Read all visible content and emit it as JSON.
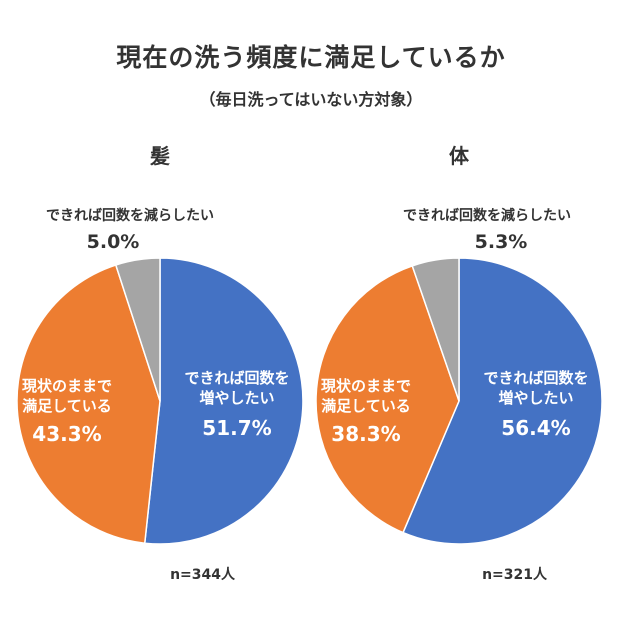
{
  "title": "現在の洗う頻度に満足しているか",
  "subtitle": "（毎日洗ってはいない方対象）",
  "colors": {
    "blue": "#4472C4",
    "orange": "#ED7D31",
    "gray": "#A5A5A5",
    "white": "#FFFFFF"
  },
  "chart_data": [
    {
      "type": "pie",
      "title": "髪",
      "n_label": "n=344人",
      "slices": [
        {
          "label_lines": [
            "できれば回数を",
            "増やしたい"
          ],
          "value": 51.7,
          "value_label": "51.7%",
          "color": "#4472C4"
        },
        {
          "label_lines": [
            "現状のままで",
            "満足している"
          ],
          "value": 43.3,
          "value_label": "43.3%",
          "color": "#ED7D31"
        },
        {
          "label_lines": [
            "できれば回数を減らしたい"
          ],
          "value": 5.0,
          "value_label": "5.0%",
          "color": "#A5A5A5"
        }
      ]
    },
    {
      "type": "pie",
      "title": "体",
      "n_label": "n=321人",
      "slices": [
        {
          "label_lines": [
            "できれば回数を",
            "増やしたい"
          ],
          "value": 56.4,
          "value_label": "56.4%",
          "color": "#4472C4"
        },
        {
          "label_lines": [
            "現状のままで",
            "満足している"
          ],
          "value": 38.3,
          "value_label": "38.3%",
          "color": "#ED7D31"
        },
        {
          "label_lines": [
            "できれば回数を減らしたい"
          ],
          "value": 5.3,
          "value_label": "5.3%",
          "color": "#A5A5A5"
        }
      ]
    }
  ]
}
